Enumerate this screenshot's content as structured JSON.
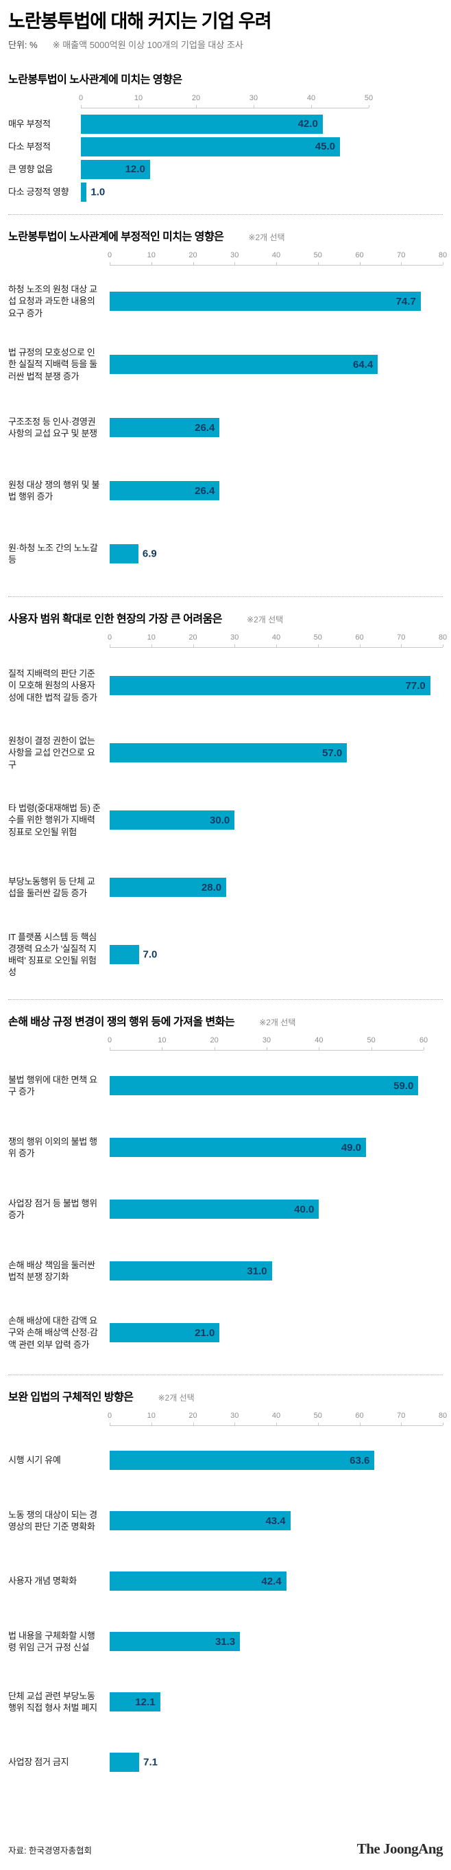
{
  "header": {
    "title": "노란봉투법에 대해 커지는 기업 우려",
    "unit_label": "단위: %",
    "survey_note": "※ 매출액 5000억원 이상 100개의 기업을 대상 조사"
  },
  "colors": {
    "bar": "#00a5c9",
    "value_text": "#123c64",
    "axis_text": "#8e8e8e",
    "axis_line": "#c9c9c9"
  },
  "chart_data": [
    {
      "type": "bar",
      "orientation": "horizontal",
      "title": "노란봉투법이 노사관계에 미치는 영향은",
      "note": "",
      "categories": [
        "매우 부정적",
        "다소 부정적",
        "큰 영향 없음",
        "다소 긍정적 영향"
      ],
      "values": [
        42.0,
        45.0,
        12.0,
        1.0
      ],
      "value_labels": [
        "42.0",
        "45.0",
        "12.0",
        "1.0"
      ],
      "xlim": [
        0,
        50
      ],
      "tick_step": 10,
      "grid": false,
      "legend": "none"
    },
    {
      "type": "bar",
      "orientation": "horizontal",
      "title": "노란봉투법이 노사관계에 부정적인 미치는 영향은",
      "note": "※2개 선택",
      "categories": [
        "하청 노조의 원청 대상 교섭 요청과 과도한 내용의 요구 증가",
        "법 규정의 모호성으로 인한 실질적 지배력 등을 둘러싼 법적 분쟁 증가",
        "구조조정 등 인사·경영권 사항의 교섭 요구 및 분쟁",
        "원청 대상 쟁의 행위 및 불법 행위 증가",
        "원·하청 노조 간의 노노갈등"
      ],
      "values": [
        74.7,
        64.4,
        26.4,
        26.4,
        6.9
      ],
      "value_labels": [
        "74.7",
        "64.4",
        "26.4",
        "26.4",
        "6.9"
      ],
      "xlim": [
        0,
        80
      ],
      "tick_step": 10,
      "grid": false,
      "legend": "none"
    },
    {
      "type": "bar",
      "orientation": "horizontal",
      "title": "사용자 범위 확대로 인한 현장의 가장 큰 어려움은",
      "note": "※2개 선택",
      "categories": [
        "질적 지배력의 판단 기준이 모호해 원청의 사용자성에 대한 법적 갈등 증가",
        "원청이 결정 권한이 없는 사항을 교섭 안건으로 요구",
        "타 법령(중대재해법 등) 준수를 위한 행위가 지배력 징표로 오인될 위험",
        "부당노동행위 등 단체 교섭을 둘러싼 갈등 증가",
        "IT 플랫폼 시스템 등 핵심 경쟁력 요소가 '실질적 지배력' 징표로 오인될 위험성"
      ],
      "values": [
        77.0,
        57.0,
        30.0,
        28.0,
        7.0
      ],
      "value_labels": [
        "77.0",
        "57.0",
        "30.0",
        "28.0",
        "7.0"
      ],
      "xlim": [
        0,
        80
      ],
      "tick_step": 10,
      "grid": false,
      "legend": "none"
    },
    {
      "type": "bar",
      "orientation": "horizontal",
      "title": "손해 배상 규정 변경이 쟁의 행위 등에 가져올 변화는",
      "note": "※2개 선택",
      "categories": [
        "불법 행위에 대한 면책 요구 증가",
        "쟁의 행위 이외의 불법 행위 증가",
        "사업장 점거 등 불법 행위 증가",
        "손해 배상 책임을 둘러싼 법적 분쟁 장기화",
        "손해 배상에 대한 감액 요구와 손해 배상액 산정·감액 관련 외부 압력 증가"
      ],
      "values": [
        59.0,
        49.0,
        40.0,
        31.0,
        21.0
      ],
      "value_labels": [
        "59.0",
        "49.0",
        "40.0",
        "31.0",
        "21.0"
      ],
      "xlim": [
        0,
        60
      ],
      "tick_step": 10,
      "grid": false,
      "legend": "none"
    },
    {
      "type": "bar",
      "orientation": "horizontal",
      "title": "보완 입법의 구체적인 방향은",
      "note": "※2개 선택",
      "categories": [
        "시행 시기 유예",
        "노동 쟁의 대상이 되는 경영상의 판단 기준 명확화",
        "사용자 개념 명확화",
        "법 내용을 구체화할 시행령 위임 근거 규정 신설",
        "단체 교섭 관련 부당노동 행위 직접 형사 처벌 폐지",
        "사업장 점거 금지"
      ],
      "values": [
        63.6,
        43.4,
        42.4,
        31.3,
        12.1,
        7.1
      ],
      "value_labels": [
        "63.6",
        "43.4",
        "42.4",
        "31.3",
        "12.1",
        "7.1"
      ],
      "xlim": [
        0,
        80
      ],
      "tick_step": 10,
      "grid": false,
      "legend": "none"
    }
  ],
  "footer": {
    "source": "자료: 한국경영자총협회",
    "brand": "The JoongAng"
  }
}
